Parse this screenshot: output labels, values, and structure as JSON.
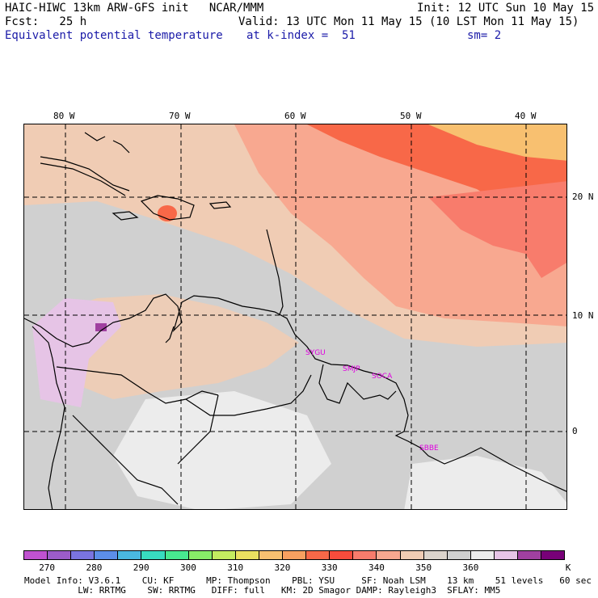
{
  "header": {
    "line1_left": "HAIC-HIWC 13km ARW-GFS init   NCAR/MMM",
    "line1_right": "Init: 12 UTC Sun 10 May 15",
    "line2_left": "Fcst:   25 h",
    "line2_right": "Valid: 13 UTC Mon 11 May 15 (10 LST Mon 11 May 15)",
    "field_name": "Equivalent potential temperature",
    "level": "at k-index =  51",
    "smoothing": "sm= 2"
  },
  "map": {
    "lon_ticks": [
      "80 W",
      "70 W",
      "60 W",
      "50 W",
      "40 W"
    ],
    "lat_ticks": [
      "20 N",
      "10 N",
      "0"
    ],
    "stations": [
      "SYGU",
      "SMJP",
      "SOCA",
      "SBBE"
    ]
  },
  "colorbar": {
    "colors": [
      "#c052d0",
      "#9c5cc8",
      "#7a74e0",
      "#5c8ee8",
      "#4ab8e0",
      "#38dcc0",
      "#48e890",
      "#88ec68",
      "#c4ec60",
      "#eae060",
      "#f8c070",
      "#f8a060",
      "#f86848",
      "#f84c3c",
      "#f87c6c",
      "#f8a890",
      "#f0ccb4",
      "#dcd4cc",
      "#d0d0d0",
      "#ececec",
      "#e6c4e6",
      "#a040a0",
      "#780078"
    ],
    "labels": [
      "270",
      "280",
      "290",
      "300",
      "310",
      "320",
      "330",
      "340",
      "350",
      "360",
      "K"
    ]
  },
  "footer": {
    "line1": "Model Info: V3.6.1    CU: KF      MP: Thompson    PBL: YSU     SF: Noah LSM    13 km    51 levels   60 sec",
    "line2": "          LW: RRTMG    SW: RRTMG   DIFF: full   KM: 2D Smagor DAMP: Rayleigh3  SFLAY: MM5"
  }
}
